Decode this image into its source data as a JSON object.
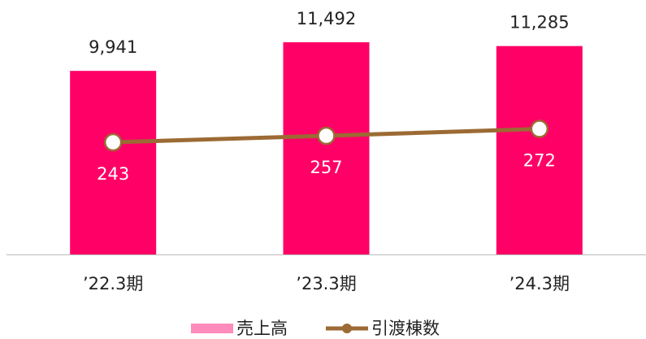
{
  "chart_data": {
    "type": "bar_line",
    "categories": [
      "’22.3期",
      "’23.3期",
      "’24.3期"
    ],
    "series": [
      {
        "name": "売上高",
        "type": "bar",
        "color": "#ff0066",
        "values": [
          9941,
          11492,
          11285
        ],
        "value_labels": [
          "9,941",
          "11,492",
          "11,285"
        ]
      },
      {
        "name": "引渡棟数",
        "type": "line",
        "color": "#9c6a34",
        "axis": "y2",
        "values": [
          243,
          257,
          272
        ]
      }
    ],
    "ylim": [
      0,
      14000
    ],
    "y2lim": [
      0,
      560
    ]
  }
}
